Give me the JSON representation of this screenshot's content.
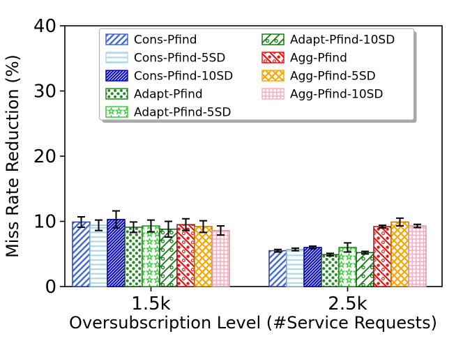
{
  "figure": {
    "background": "#ffffff",
    "axis_color": "#000000",
    "error_bar_color": "#000000",
    "legend_border_color": "#b0b0b0",
    "legend_shadow_color": "#a8a8a8"
  },
  "chart_data": {
    "type": "bar",
    "title": "",
    "xlabel": "Oversubscription Level (#Service Requests)",
    "ylabel": "Miss Rate Reduction (%)",
    "categories": [
      "1.5k",
      "2.5k"
    ],
    "yticks": [
      0,
      10,
      20,
      30,
      40
    ],
    "ylim": [
      0,
      40
    ],
    "grid": false,
    "legend_position": "upper center, two columns, with shadow",
    "legend_columns": [
      [
        0,
        1,
        2,
        3,
        4
      ],
      [
        5,
        6,
        7,
        8
      ]
    ],
    "series": [
      {
        "name": "Cons-Pfind",
        "values": [
          9.9,
          5.5
        ],
        "errors": [
          0.8,
          0.2
        ],
        "color": "#4169E1",
        "edge": "#2B3F9E",
        "hatch": "diagonal-right"
      },
      {
        "name": "Cons-Pfind-5SD",
        "values": [
          9.4,
          5.7
        ],
        "errors": [
          0.8,
          0.2
        ],
        "color": "#ADD8E6",
        "edge": "#85B9CE",
        "hatch": "horizontal-lines"
      },
      {
        "name": "Cons-Pfind-10SD",
        "values": [
          10.3,
          6.0
        ],
        "errors": [
          1.3,
          0.2
        ],
        "color": "#0000CD",
        "edge": "#0000A0",
        "hatch": "diagonal-right-dense"
      },
      {
        "name": "Adapt-Pfind",
        "values": [
          9.1,
          4.9
        ],
        "errors": [
          0.8,
          0.2
        ],
        "color": "#228B22",
        "edge": "#175F17",
        "hatch": "dots"
      },
      {
        "name": "Adapt-Pfind-5SD",
        "values": [
          9.3,
          6.0
        ],
        "errors": [
          0.9,
          0.7
        ],
        "color": "#32CD32",
        "edge": "#23901F",
        "hatch": "stars"
      },
      {
        "name": "Adapt-Pfind-10SD",
        "values": [
          8.8,
          5.2
        ],
        "errors": [
          1.2,
          0.2
        ],
        "color": "#107C10",
        "edge": "#0B570B",
        "hatch": "diagonal-circles"
      },
      {
        "name": "Agg-Pfind",
        "values": [
          9.5,
          9.2
        ],
        "errors": [
          0.9,
          0.2
        ],
        "color": "#EE1111",
        "edge": "#A50D0D",
        "hatch": "backslash-dots"
      },
      {
        "name": "Agg-Pfind-5SD",
        "values": [
          9.2,
          9.9
        ],
        "errors": [
          0.9,
          0.6
        ],
        "color": "#FFA500",
        "edge": "#B37400",
        "hatch": "crosshatch"
      },
      {
        "name": "Agg-Pfind-10SD",
        "values": [
          8.6,
          9.3
        ],
        "errors": [
          0.7,
          0.25
        ],
        "color": "#F7B0C0",
        "edge": "#D395A2",
        "hatch": "grid"
      }
    ]
  }
}
